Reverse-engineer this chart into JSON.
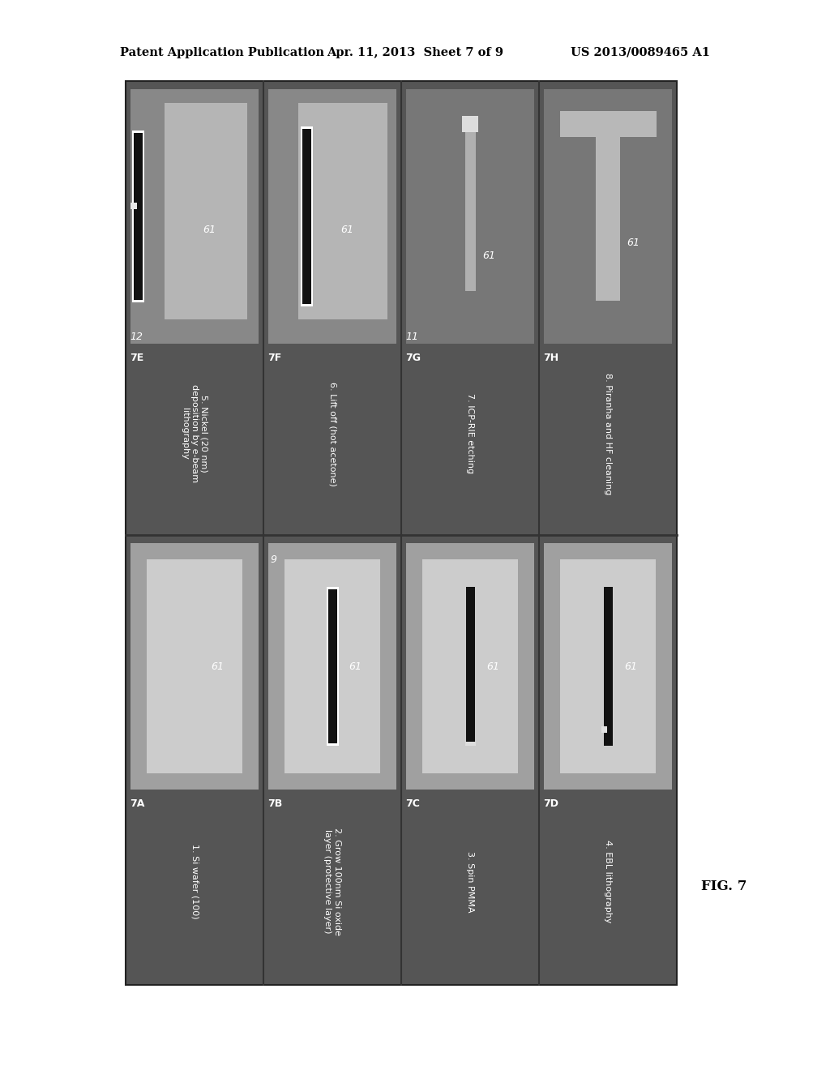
{
  "bg_color": "#ffffff",
  "header_left": "Patent Application Publication",
  "header_center": "Apr. 11, 2013  Sheet 7 of 9",
  "header_right": "US 2013/0089465 A1",
  "fig_label": "FIG. 7",
  "main_bg": "#5a5a5a",
  "panel_bg_medium": "#888888",
  "panel_bg_light": "#b8b8b8",
  "panel_bg_lighter": "#d0d0d0",
  "label_strip_bg": "#7a7a7a",
  "bottom_panels": [
    {
      "label": "7A",
      "step": "1. Si wafer (100)",
      "style": "plain",
      "num": ""
    },
    {
      "label": "7B",
      "step": "2. Grow 100nm Si oxide\nlayer (protective layer)",
      "style": "white_black_bar",
      "num": "9"
    },
    {
      "label": "7C",
      "step": "3. Spin PMMA",
      "style": "black_bar",
      "num": ""
    },
    {
      "label": "7D",
      "step": "4. EBL lithography",
      "style": "black_bar_dot",
      "num": ""
    }
  ],
  "top_panels": [
    {
      "label": "7E",
      "step": "5. Nickel (20 nm)\ndeposition by e-beam\nlithography",
      "style": "white_black_bar_left_rect",
      "num": "12"
    },
    {
      "label": "7F",
      "step": "6. Lift off (hot acetone)",
      "style": "white_outline_bar_rect",
      "num": ""
    },
    {
      "label": "7G",
      "step": "7. ICP-RIE etching",
      "style": "cross_vertical",
      "num": "11"
    },
    {
      "label": "7H",
      "step": "8. Piranha and HF cleaning",
      "style": "t_shape",
      "num": ""
    }
  ],
  "cantilever_label": "61"
}
